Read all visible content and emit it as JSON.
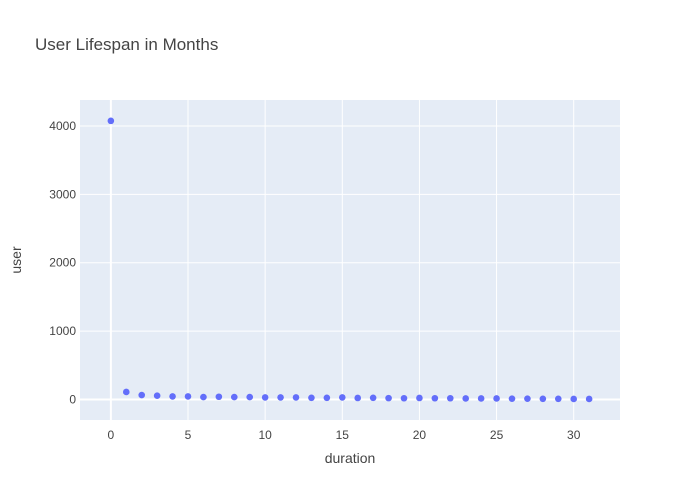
{
  "chart_data": {
    "type": "scatter",
    "title": "User Lifespan in Months",
    "xlabel": "duration",
    "ylabel": "user",
    "xlim": [
      -2,
      33
    ],
    "ylim": [
      -300,
      4380
    ],
    "x_ticks": [
      0,
      5,
      10,
      15,
      20,
      25,
      30
    ],
    "y_ticks": [
      0,
      1000,
      2000,
      3000,
      4000
    ],
    "grid": true,
    "colors": {
      "marker": "#636efa",
      "plot_bg": "#e5ecf6",
      "grid": "#ffffff",
      "text": "#444444"
    },
    "series": [
      {
        "x": [
          0,
          1,
          2,
          3,
          4,
          5,
          6,
          7,
          8,
          9,
          10,
          11,
          12,
          13,
          14,
          15,
          16,
          17,
          18,
          19,
          20,
          21,
          22,
          23,
          24,
          25,
          26,
          27,
          28,
          29,
          30,
          31
        ],
        "y": [
          4075,
          110,
          65,
          55,
          45,
          45,
          35,
          40,
          35,
          35,
          30,
          30,
          30,
          25,
          25,
          30,
          22,
          25,
          20,
          18,
          22,
          18,
          18,
          15,
          15,
          15,
          12,
          12,
          10,
          10,
          8,
          8
        ]
      }
    ]
  }
}
